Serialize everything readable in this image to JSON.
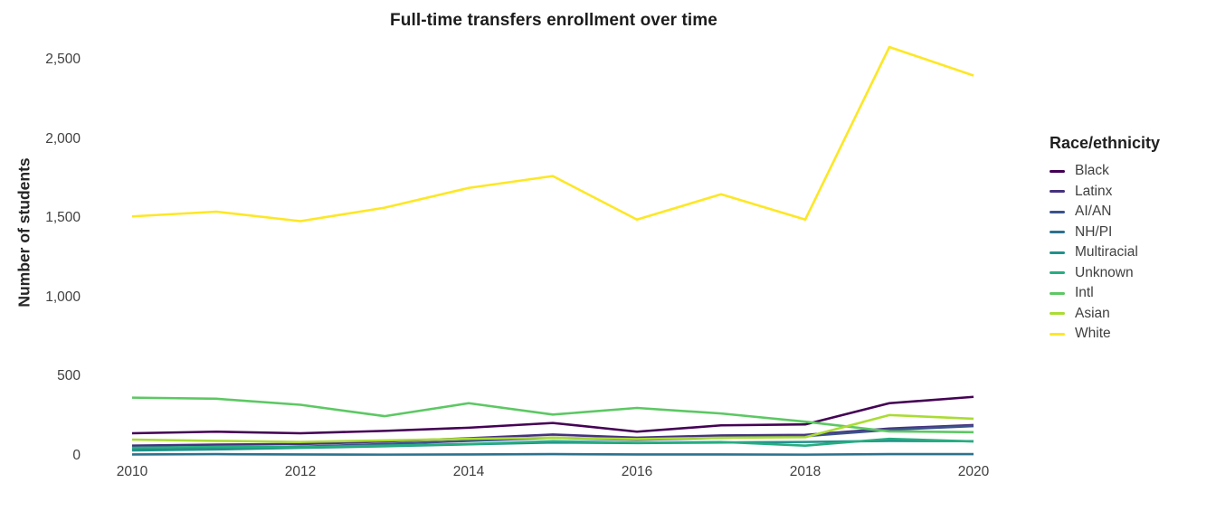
{
  "title": "Full-time transfers enrollment over time",
  "y_axis": {
    "label": "Number of students",
    "ticks": [
      {
        "value": 0,
        "label": "0"
      },
      {
        "value": 500,
        "label": "500"
      },
      {
        "value": 1000,
        "label": "1,000"
      },
      {
        "value": 1500,
        "label": "1,500"
      },
      {
        "value": 2000,
        "label": "2,000"
      },
      {
        "value": 2500,
        "label": "2,500"
      }
    ]
  },
  "x_axis": {
    "ticks": [
      {
        "value": 2010,
        "label": "2010"
      },
      {
        "value": 2012,
        "label": "2012"
      },
      {
        "value": 2014,
        "label": "2014"
      },
      {
        "value": 2016,
        "label": "2016"
      },
      {
        "value": 2018,
        "label": "2018"
      },
      {
        "value": 2020,
        "label": "2020"
      }
    ]
  },
  "legend": {
    "title": "Race/ethnicity"
  },
  "chart_data": {
    "type": "line",
    "title": "Full-time transfers enrollment over time",
    "xlabel": "",
    "ylabel": "Number of students",
    "xlim": [
      2010,
      2020
    ],
    "ylim": [
      0,
      2500
    ],
    "grid": false,
    "legend_position": "right",
    "legend_title": "Race/ethnicity",
    "x": [
      2010,
      2011,
      2012,
      2013,
      2014,
      2015,
      2016,
      2017,
      2018,
      2019,
      2020
    ],
    "series": [
      {
        "name": "Black",
        "color": "#440154",
        "values": [
          140,
          150,
          140,
          155,
          175,
          205,
          150,
          190,
          196,
          330,
          370
        ]
      },
      {
        "name": "Latinx",
        "color": "#46327e",
        "values": [
          62,
          68,
          72,
          88,
          108,
          132,
          112,
          126,
          130,
          170,
          192
        ]
      },
      {
        "name": "AI/AN",
        "color": "#3b528b",
        "values": [
          35,
          42,
          55,
          72,
          92,
          112,
          98,
          112,
          122,
          162,
          185
        ]
      },
      {
        "name": "NH/PI",
        "color": "#2c728e",
        "values": [
          6,
          8,
          6,
          5,
          6,
          8,
          6,
          6,
          5,
          8,
          8
        ]
      },
      {
        "name": "Multiracial",
        "color": "#21918c",
        "values": [
          32,
          38,
          48,
          58,
          70,
          82,
          78,
          82,
          85,
          92,
          90
        ]
      },
      {
        "name": "Unknown",
        "color": "#27ad81",
        "values": [
          48,
          54,
          52,
          62,
          72,
          90,
          80,
          85,
          62,
          105,
          88
        ]
      },
      {
        "name": "Intl",
        "color": "#5cc863",
        "values": [
          365,
          358,
          320,
          248,
          330,
          258,
          300,
          265,
          213,
          152,
          147
        ]
      },
      {
        "name": "Asian",
        "color": "#aadc32",
        "values": [
          100,
          92,
          85,
          95,
          105,
          112,
          103,
          112,
          115,
          255,
          232
        ]
      },
      {
        "name": "White",
        "color": "#fde725",
        "values": [
          1510,
          1540,
          1480,
          1565,
          1690,
          1765,
          1490,
          1650,
          1490,
          2580,
          2400
        ]
      }
    ]
  }
}
